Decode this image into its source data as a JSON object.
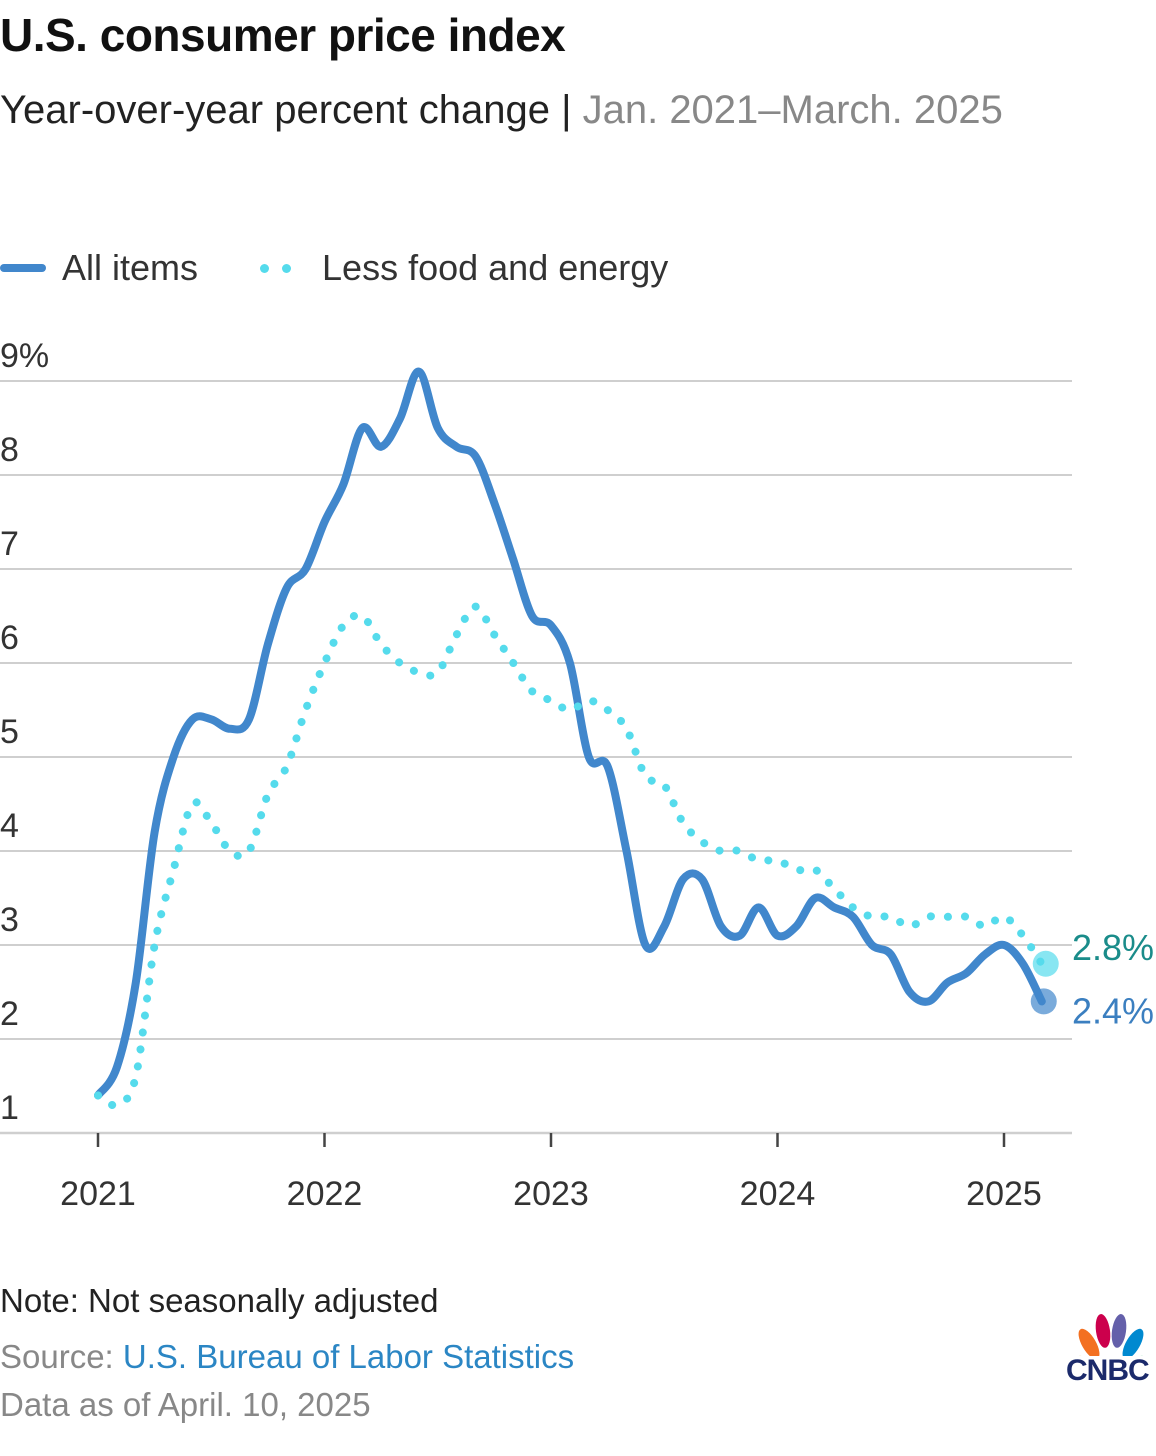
{
  "header": {
    "title": "U.S. consumer price index",
    "subtitle_main": "Year-over-year percent change",
    "subtitle_sep": " | ",
    "subtitle_range": "Jan. 2021–March. 2025"
  },
  "legend": {
    "all_items": "All items",
    "less_food_energy": "Less food and energy"
  },
  "colors": {
    "all_items": "#4187cc",
    "less_food_energy": "#55dbec",
    "all_items_label": "#3b7fc0",
    "less_food_energy_label": "#1a8c8a",
    "grid": "#cfcfcf"
  },
  "chart_data": {
    "type": "line",
    "x_unit": "month index (0 = Jan. 2021)",
    "ylim": [
      1,
      9
    ],
    "yticks": [
      {
        "value": 1,
        "label": "1"
      },
      {
        "value": 2,
        "label": "2"
      },
      {
        "value": 3,
        "label": "3"
      },
      {
        "value": 4,
        "label": "4"
      },
      {
        "value": 5,
        "label": "5"
      },
      {
        "value": 6,
        "label": "6"
      },
      {
        "value": 7,
        "label": "7"
      },
      {
        "value": 8,
        "label": "8"
      },
      {
        "value": 9,
        "label": "9%"
      }
    ],
    "xticks": [
      {
        "month": 0,
        "label": "2021"
      },
      {
        "month": 12,
        "label": "2022"
      },
      {
        "month": 24,
        "label": "2023"
      },
      {
        "month": 36,
        "label": "2024"
      },
      {
        "month": 48,
        "label": "2025"
      }
    ],
    "grid": true,
    "legend_position": "top-left",
    "series": [
      {
        "name": "All items",
        "style": "solid",
        "end_label": "2.4%",
        "values": [
          1.4,
          1.7,
          2.6,
          4.2,
          5.0,
          5.4,
          5.4,
          5.3,
          5.4,
          6.2,
          6.8,
          7.0,
          7.5,
          7.9,
          8.5,
          8.3,
          8.6,
          9.1,
          8.5,
          8.3,
          8.2,
          7.7,
          7.1,
          6.5,
          6.4,
          6.0,
          5.0,
          4.9,
          4.0,
          3.0,
          3.2,
          3.7,
          3.7,
          3.2,
          3.1,
          3.4,
          3.1,
          3.2,
          3.5,
          3.4,
          3.3,
          3.0,
          2.9,
          2.5,
          2.4,
          2.6,
          2.7,
          2.9,
          3.0,
          2.8,
          2.4
        ]
      },
      {
        "name": "Less food and energy",
        "style": "dotted",
        "end_label": "2.8%",
        "values": [
          1.4,
          1.3,
          1.6,
          3.0,
          3.8,
          4.5,
          4.3,
          4.0,
          4.0,
          4.6,
          4.9,
          5.5,
          6.0,
          6.4,
          6.5,
          6.2,
          6.0,
          5.9,
          5.9,
          6.3,
          6.6,
          6.3,
          6.0,
          5.7,
          5.6,
          5.5,
          5.6,
          5.5,
          5.3,
          4.8,
          4.7,
          4.3,
          4.1,
          4.0,
          4.0,
          3.9,
          3.9,
          3.8,
          3.8,
          3.6,
          3.4,
          3.3,
          3.3,
          3.2,
          3.3,
          3.3,
          3.3,
          3.2,
          3.3,
          3.1,
          2.8
        ]
      }
    ]
  },
  "footer": {
    "note": "Note: Not seasonally adjusted",
    "source_label": "Source: ",
    "source_name": "U.S. Bureau of Labor Statistics",
    "as_of": "Data as of April. 10, 2025",
    "logo_text": "CNBC"
  }
}
